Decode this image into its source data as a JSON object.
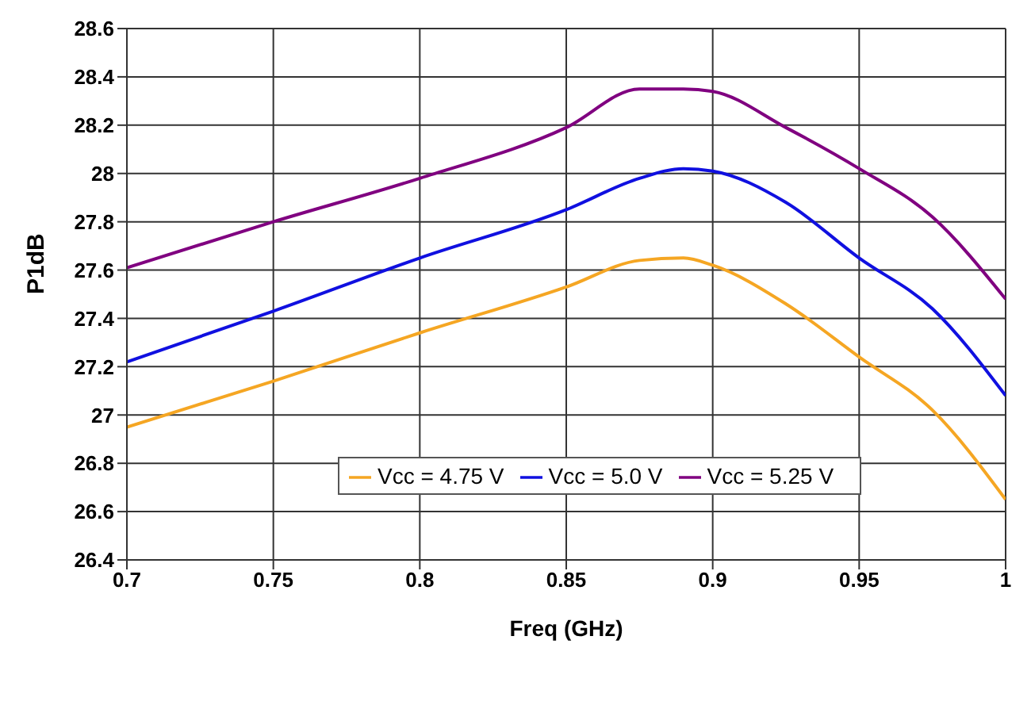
{
  "chart_data": {
    "type": "line",
    "xlabel": "Freq (GHz)",
    "ylabel": "P1dB",
    "x": [
      0.7,
      0.75,
      0.8,
      0.85,
      0.875,
      0.89,
      0.9,
      0.925,
      0.95,
      0.975,
      1.0
    ],
    "series": [
      {
        "name": "Vcc = 4.75 V",
        "color": "#f5a623",
        "values": [
          26.95,
          27.14,
          27.34,
          27.53,
          27.64,
          27.65,
          27.62,
          27.46,
          27.24,
          27.02,
          26.65
        ]
      },
      {
        "name": "Vcc = 5.0 V",
        "color": "#1010e0",
        "values": [
          27.22,
          27.43,
          27.65,
          27.85,
          27.98,
          28.02,
          28.01,
          27.88,
          27.65,
          27.44,
          27.08
        ]
      },
      {
        "name": "Vcc = 5.25 V",
        "color": "#800080",
        "values": [
          27.61,
          27.8,
          27.98,
          28.19,
          28.35,
          28.35,
          28.34,
          28.19,
          28.02,
          27.82,
          27.48
        ]
      }
    ],
    "xlim": [
      0.7,
      1.0
    ],
    "xticks": [
      0.7,
      0.75,
      0.8,
      0.85,
      0.9,
      0.95,
      {
        "value": 1.0,
        "label": "1"
      }
    ],
    "ylim": [
      26.4,
      28.6
    ],
    "yticks": [
      26.4,
      26.6,
      26.8,
      {
        "value": 27,
        "label": "27"
      },
      27.2,
      27.4,
      27.6,
      27.8,
      {
        "value": 28,
        "label": "28"
      },
      28.2,
      28.4,
      28.6
    ],
    "grid": true,
    "legend": "bottom",
    "marker": "none",
    "line_style": "solid"
  }
}
